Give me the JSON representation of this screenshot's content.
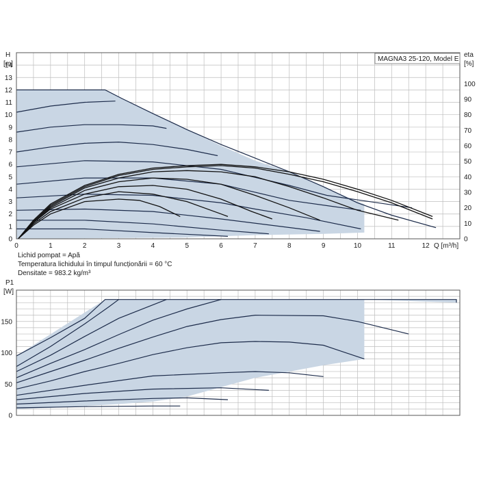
{
  "title": "MAGNA3 25-120, Model E",
  "info_lines": [
    "Lichid pompat = Apă",
    "Temperatura lichidului în timpul funcționării = 60 °C",
    "Densitate = 983.2 kg/m³"
  ],
  "colors": {
    "region": "#c9d6e4",
    "curve": "#1c2b4a",
    "eta": "#111111",
    "grid": "#bdbdbd"
  },
  "chart_data": [
    {
      "type": "line",
      "name": "head",
      "ylabel": "H",
      "yunit": "[m]",
      "y2label": "eta",
      "y2unit": "[%]",
      "xlabel": "Q [m³/h]",
      "xlim": [
        0,
        13
      ],
      "ylim": [
        0,
        15
      ],
      "y2lim": [
        0,
        120
      ],
      "xticks": [
        0,
        1,
        2,
        3,
        4,
        5,
        6,
        7,
        8,
        9,
        10,
        11,
        12
      ],
      "yticks": [
        0,
        1,
        2,
        3,
        4,
        5,
        6,
        7,
        8,
        9,
        10,
        11,
        12,
        13,
        14
      ],
      "y2ticks": [
        0,
        10,
        20,
        30,
        40,
        50,
        60,
        70,
        80,
        90,
        100
      ],
      "grid": true,
      "envelope": [
        [
          0,
          12
        ],
        [
          2.6,
          12
        ],
        [
          3.1,
          11.3
        ],
        [
          4,
          10.1
        ],
        [
          5,
          8.8
        ],
        [
          6,
          7.5
        ],
        [
          7,
          6.3
        ],
        [
          8,
          5.4
        ],
        [
          9,
          4.2
        ],
        [
          10,
          3
        ],
        [
          10.2,
          2.8
        ],
        [
          10.2,
          0.5
        ],
        [
          9,
          0.4
        ],
        [
          7,
          0.3
        ],
        [
          4.8,
          0.1
        ],
        [
          0,
          0
        ]
      ],
      "head_curves": [
        {
          "points": [
            [
              0,
              12
            ],
            [
              2.6,
              12
            ],
            [
              3.1,
              11.3
            ],
            [
              4,
              10.1
            ],
            [
              5,
              8.8
            ],
            [
              6,
              7.6
            ],
            [
              7,
              6.5
            ],
            [
              8,
              5.4
            ],
            [
              9,
              4.2
            ],
            [
              10,
              2.9
            ],
            [
              11,
              1.9
            ],
            [
              12.3,
              0.9
            ]
          ]
        },
        {
          "points": [
            [
              0,
              10.2
            ],
            [
              1,
              10.7
            ],
            [
              2,
              11
            ],
            [
              2.9,
              11.1
            ]
          ]
        },
        {
          "points": [
            [
              0,
              8.6
            ],
            [
              1,
              9
            ],
            [
              2,
              9.2
            ],
            [
              3,
              9.2
            ],
            [
              4,
              9.1
            ],
            [
              4.4,
              8.9
            ]
          ]
        },
        {
          "points": [
            [
              0,
              7
            ],
            [
              1,
              7.4
            ],
            [
              2,
              7.7
            ],
            [
              3,
              7.8
            ],
            [
              4,
              7.6
            ],
            [
              5,
              7.2
            ],
            [
              5.9,
              6.7
            ]
          ]
        },
        {
          "points": [
            [
              0,
              5.8
            ],
            [
              2,
              6.3
            ],
            [
              4,
              6.2
            ],
            [
              6,
              5.6
            ],
            [
              8,
              4.3
            ],
            [
              9.1,
              3.5
            ],
            [
              11.6,
              2.5
            ]
          ]
        },
        {
          "points": [
            [
              0,
              4.4
            ],
            [
              2,
              4.9
            ],
            [
              4,
              4.9
            ],
            [
              6,
              4.4
            ],
            [
              8,
              3.1
            ],
            [
              9.3,
              2.6
            ],
            [
              10.1,
              2.3
            ]
          ]
        },
        {
          "points": [
            [
              0,
              3.3
            ],
            [
              2,
              3.6
            ],
            [
              4,
              3.5
            ],
            [
              6,
              2.9
            ],
            [
              7,
              2.4
            ],
            [
              8.5,
              1.7
            ],
            [
              10.1,
              0.8
            ]
          ]
        },
        {
          "points": [
            [
              0,
              2.3
            ],
            [
              2,
              2.4
            ],
            [
              4,
              2.2
            ],
            [
              6,
              1.6
            ],
            [
              8.9,
              0.6
            ]
          ]
        },
        {
          "points": [
            [
              0,
              1.5
            ],
            [
              2,
              1.5
            ],
            [
              4,
              1.2
            ],
            [
              6,
              0.7
            ],
            [
              7.4,
              0.4
            ]
          ]
        },
        {
          "points": [
            [
              0,
              0.8
            ],
            [
              2,
              0.8
            ],
            [
              4,
              0.5
            ],
            [
              6.2,
              0.2
            ]
          ]
        }
      ],
      "eta_curves": [
        {
          "points": [
            [
              0.05,
              0
            ],
            [
              0.5,
              1.5
            ],
            [
              1,
              2.8
            ],
            [
              2,
              4.3
            ],
            [
              3,
              5.2
            ],
            [
              4,
              5.7
            ],
            [
              5,
              5.9
            ],
            [
              6,
              6
            ],
            [
              7,
              5.8
            ],
            [
              8,
              5.4
            ],
            [
              9,
              4.8
            ],
            [
              10,
              4
            ],
            [
              11,
              3.1
            ],
            [
              12.2,
              1.8
            ]
          ]
        },
        {
          "points": [
            [
              0.05,
              0
            ],
            [
              0.5,
              1.4
            ],
            [
              1,
              2.7
            ],
            [
              2,
              4.2
            ],
            [
              3,
              5.1
            ],
            [
              4,
              5.6
            ],
            [
              5,
              5.8
            ],
            [
              6,
              5.9
            ],
            [
              7,
              5.7
            ],
            [
              8,
              5.2
            ],
            [
              9,
              4.6
            ],
            [
              10,
              3.8
            ],
            [
              11,
              2.9
            ],
            [
              12.2,
              1.6
            ]
          ]
        },
        {
          "points": [
            [
              0.05,
              0
            ],
            [
              0.5,
              1.4
            ],
            [
              1,
              2.6
            ],
            [
              2,
              4.1
            ],
            [
              3,
              4.9
            ],
            [
              4,
              5.4
            ],
            [
              5,
              5.5
            ],
            [
              6,
              5.4
            ],
            [
              7,
              5
            ],
            [
              8,
              4.2
            ],
            [
              9,
              3.3
            ],
            [
              10,
              2.3
            ],
            [
              11.2,
              1.5
            ]
          ]
        },
        {
          "points": [
            [
              0.05,
              0
            ],
            [
              0.5,
              1.3
            ],
            [
              1,
              2.5
            ],
            [
              2,
              3.9
            ],
            [
              3,
              4.6
            ],
            [
              4,
              4.9
            ],
            [
              5,
              4.8
            ],
            [
              6,
              4.4
            ],
            [
              7,
              3.5
            ],
            [
              8,
              2.5
            ],
            [
              8.9,
              1.5
            ]
          ]
        },
        {
          "points": [
            [
              0.05,
              0
            ],
            [
              0.5,
              1.3
            ],
            [
              1,
              2.4
            ],
            [
              2,
              3.6
            ],
            [
              3,
              4.2
            ],
            [
              4,
              4.3
            ],
            [
              5,
              4
            ],
            [
              6,
              3.2
            ],
            [
              6.9,
              2.2
            ],
            [
              7.5,
              1.6
            ]
          ]
        },
        {
          "points": [
            [
              0.05,
              0
            ],
            [
              0.5,
              1.2
            ],
            [
              1,
              2.2
            ],
            [
              2,
              3.3
            ],
            [
              3,
              3.8
            ],
            [
              4,
              3.6
            ],
            [
              5,
              3
            ],
            [
              6,
              2
            ],
            [
              6.2,
              1.8
            ]
          ]
        },
        {
          "points": [
            [
              0.05,
              0
            ],
            [
              0.5,
              1.1
            ],
            [
              1,
              2
            ],
            [
              2,
              3
            ],
            [
              3,
              3.2
            ],
            [
              3.6,
              3.1
            ],
            [
              4.2,
              2.6
            ],
            [
              4.8,
              1.8
            ]
          ]
        }
      ]
    },
    {
      "type": "line",
      "name": "power",
      "ylabel": "P1",
      "yunit": "[W]",
      "xlim": [
        0,
        13
      ],
      "ylim": [
        0,
        200
      ],
      "yticks": [
        0,
        50,
        100,
        150
      ],
      "grid": true,
      "envelope": [
        [
          0,
          95
        ],
        [
          2.6,
          185
        ],
        [
          12.9,
          185
        ],
        [
          12.9,
          180
        ],
        [
          10.2,
          185
        ],
        [
          10.2,
          90
        ],
        [
          9,
          80
        ],
        [
          8,
          70
        ],
        [
          7,
          60
        ],
        [
          6,
          45
        ],
        [
          5,
          30
        ],
        [
          4,
          22
        ],
        [
          3,
          18
        ],
        [
          1,
          12
        ],
        [
          0,
          10
        ]
      ],
      "power_curves": [
        {
          "points": [
            [
              0,
              95
            ],
            [
              1,
              124
            ],
            [
              2,
              155
            ],
            [
              2.6,
              185
            ],
            [
              12.9,
              185
            ],
            [
              12.9,
              180
            ]
          ]
        },
        {
          "points": [
            [
              0,
              78
            ],
            [
              1,
              110
            ],
            [
              2,
              146
            ],
            [
              2.7,
              173
            ],
            [
              3,
              185
            ]
          ]
        },
        {
          "points": [
            [
              0,
              70
            ],
            [
              1,
              96
            ],
            [
              2,
              126
            ],
            [
              3,
              155
            ],
            [
              4.4,
              185
            ]
          ]
        },
        {
          "points": [
            [
              0,
              60
            ],
            [
              1,
              83
            ],
            [
              2,
              105
            ],
            [
              3,
              129
            ],
            [
              4,
              152
            ],
            [
              5,
              170
            ],
            [
              6,
              185
            ]
          ]
        },
        {
          "points": [
            [
              0,
              52
            ],
            [
              1,
              70
            ],
            [
              2,
              88
            ],
            [
              3,
              107
            ],
            [
              4,
              125
            ],
            [
              5,
              142
            ],
            [
              6,
              153
            ],
            [
              7,
              160
            ],
            [
              9,
              159
            ],
            [
              10,
              150
            ],
            [
              11.5,
              130
            ]
          ]
        },
        {
          "points": [
            [
              0,
              42
            ],
            [
              1,
              55
            ],
            [
              2,
              70
            ],
            [
              3,
              83
            ],
            [
              4,
              97
            ],
            [
              5,
              108
            ],
            [
              6,
              116
            ],
            [
              7,
              118
            ],
            [
              8,
              117
            ],
            [
              9,
              112
            ],
            [
              10.2,
              90
            ]
          ]
        },
        {
          "points": [
            [
              0,
              32
            ],
            [
              2,
              48
            ],
            [
              4,
              63
            ],
            [
              6,
              68
            ],
            [
              7,
              70
            ],
            [
              8,
              68
            ],
            [
              9,
              62
            ]
          ]
        },
        {
          "points": [
            [
              0,
              25
            ],
            [
              2,
              35
            ],
            [
              4,
              42
            ],
            [
              6,
              44
            ],
            [
              7.4,
              40
            ]
          ]
        },
        {
          "points": [
            [
              0,
              18
            ],
            [
              2,
              23
            ],
            [
              4,
              27
            ],
            [
              5,
              28
            ],
            [
              6.2,
              25
            ]
          ]
        },
        {
          "points": [
            [
              0,
              12
            ],
            [
              2,
              14
            ],
            [
              4,
              15
            ],
            [
              4.8,
              15
            ]
          ]
        }
      ]
    }
  ]
}
